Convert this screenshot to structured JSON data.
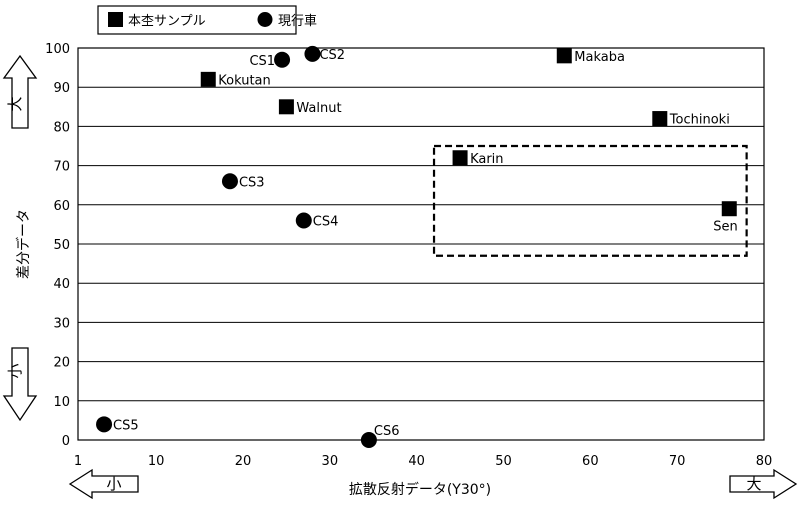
{
  "chart_data": {
    "type": "scatter",
    "xlabel": "拡散反射データ(Y30°)",
    "ylabel": "差分データ",
    "xlim": [
      1,
      80
    ],
    "ylim": [
      0,
      100
    ],
    "x_ticks": [
      1,
      10,
      20,
      30,
      40,
      50,
      60,
      70,
      80
    ],
    "y_ticks": [
      0,
      10,
      20,
      30,
      40,
      50,
      60,
      70,
      80,
      90,
      100
    ],
    "grid": "horizontal",
    "legend_position": "top-left",
    "series": [
      {
        "name": "本杢サンプル",
        "marker": "square",
        "points": [
          {
            "label": "Kokutan",
            "x": 16,
            "y": 92
          },
          {
            "label": "Walnut",
            "x": 25,
            "y": 85
          },
          {
            "label": "Makaba",
            "x": 57,
            "y": 98
          },
          {
            "label": "Tochinoki",
            "x": 68,
            "y": 82
          },
          {
            "label": "Karin",
            "x": 45,
            "y": 72
          },
          {
            "label": "Sen",
            "x": 76,
            "y": 59
          }
        ]
      },
      {
        "name": "現行車",
        "marker": "circle",
        "points": [
          {
            "label": "CS1",
            "x": 24.5,
            "y": 97
          },
          {
            "label": "CS2",
            "x": 28,
            "y": 98.5
          },
          {
            "label": "CS3",
            "x": 18.5,
            "y": 66
          },
          {
            "label": "CS4",
            "x": 27,
            "y": 56
          },
          {
            "label": "CS5",
            "x": 4,
            "y": 4
          },
          {
            "label": "CS6",
            "x": 34.5,
            "y": 0
          }
        ]
      }
    ],
    "highlight_box": {
      "x": [
        42,
        78
      ],
      "y": [
        47,
        75
      ]
    }
  },
  "indicators": {
    "y_high": "大",
    "y_low": "小",
    "x_low": "小",
    "x_high": "大"
  }
}
